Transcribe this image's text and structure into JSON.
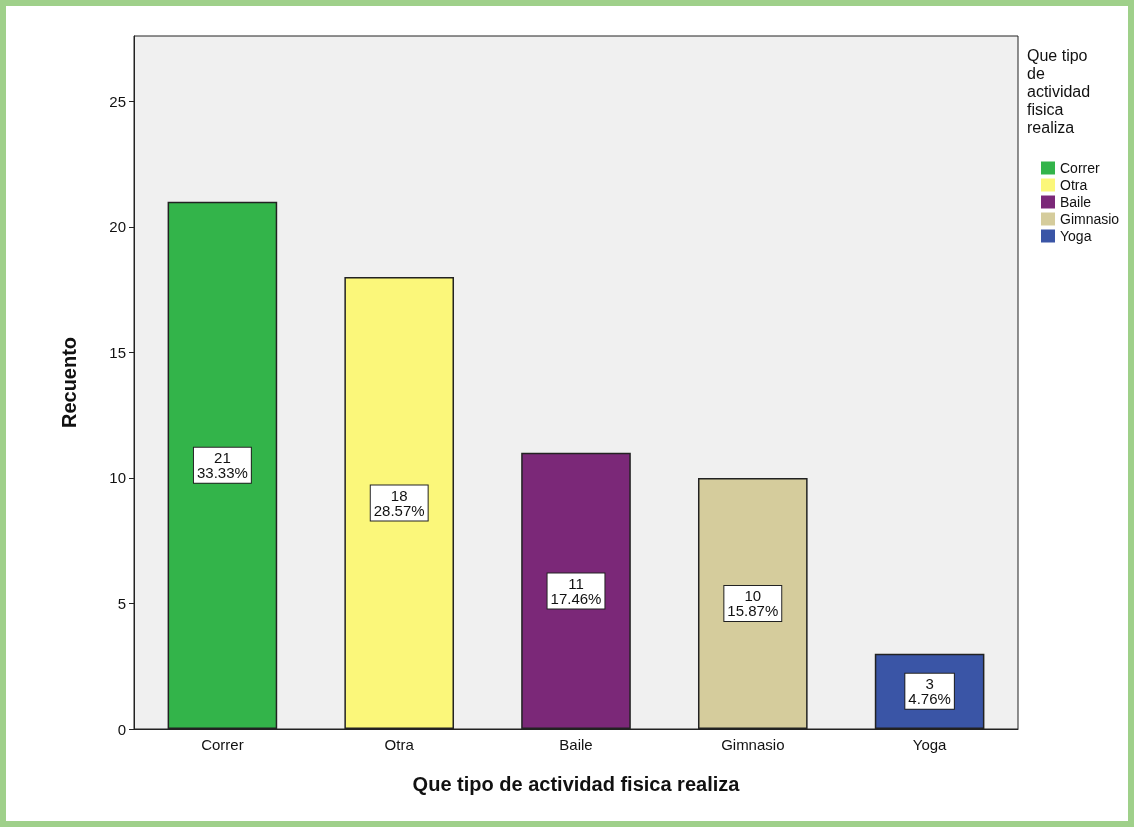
{
  "chart_data": {
    "type": "bar",
    "xlabel": "Que tipo de actividad fisica realiza",
    "ylabel": "Recuento",
    "legend_title": "Que tipo de actividad fisica realiza",
    "categories": [
      "Correr",
      "Otra",
      "Baile",
      "Gimnasio",
      "Yoga"
    ],
    "stacked": true,
    "series": [
      {
        "name": "Correr",
        "color": "#33b44a",
        "values": [
          21,
          null,
          null,
          null,
          null
        ],
        "value_labels": [
          "21\n33.33%",
          null,
          null,
          null,
          null
        ]
      },
      {
        "name": "Otra",
        "color": "#fbf77a",
        "values": [
          null,
          18,
          null,
          null,
          null
        ],
        "value_labels": [
          null,
          "18\n28.57%",
          null,
          null,
          null
        ]
      },
      {
        "name": "Baile",
        "color": "#7b2878",
        "values": [
          null,
          null,
          11,
          null,
          null
        ],
        "value_labels": [
          null,
          null,
          "11\n17.46%",
          null,
          null
        ]
      },
      {
        "name": "Gimnasio",
        "color": "#d5cc9c",
        "values": [
          null,
          null,
          null,
          10,
          null
        ],
        "value_labels": [
          null,
          null,
          null,
          "10\n15.87%",
          null
        ]
      },
      {
        "name": "Yoga",
        "color": "#3a55a6",
        "values": [
          null,
          null,
          null,
          null,
          3
        ],
        "value_labels": [
          null,
          null,
          null,
          null,
          "3\n4.76%"
        ]
      }
    ],
    "ylim": [
      0,
      27.6
    ],
    "yticks": [
      0,
      5,
      10,
      15,
      20,
      25
    ],
    "grid": false,
    "legend": "right"
  }
}
